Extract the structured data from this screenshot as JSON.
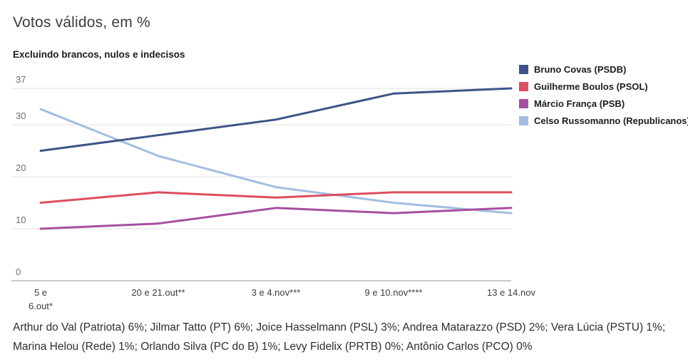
{
  "title": "Votos válidos, em %",
  "subtitle": "Excluindo brancos, nulos e indecisos",
  "footer_lines": [
    "Arthur do Val (Patriota) 6%; Jilmar Tatto (PT) 6%; Joice Hasselmann (PSL) 3%; Andrea Matarazzo (PSD) 2%; Vera Lúcia (PSTU) 1%;",
    "Marina Helou (Rede) 1%; Orlando Silva (PC do B) 1%; Levy Fidelix (PRTB) 0%; Antônio Carlos (PCO) 0%"
  ],
  "chart_data": {
    "type": "line",
    "categories": [
      "5 e\n6.out*",
      "20 e 21.out**",
      "3 e 4.nov***",
      "9 e 10.nov****",
      "13 e 14.nov"
    ],
    "series": [
      {
        "name": "Bruno Covas (PSDB)",
        "color": "#3e5488",
        "values": [
          25,
          28,
          31,
          36,
          37
        ]
      },
      {
        "name": "Guilherme Boulos (PSOL)",
        "color": "#dd4e5e",
        "values": [
          15,
          17,
          16,
          17,
          17
        ]
      },
      {
        "name": "Márcio França (PSB)",
        "color": "#a64fa0",
        "values": [
          10,
          11,
          14,
          13,
          14
        ]
      },
      {
        "name": "Celso Russomanno (Republicanos)",
        "color": "#a3bde2",
        "values": [
          33,
          24,
          18,
          15,
          13
        ]
      }
    ],
    "y_ticks": [
      0,
      10,
      20,
      30,
      37
    ],
    "ylim": [
      0,
      37
    ],
    "xlabel": "",
    "ylabel": "",
    "grid": true,
    "legend_position": "right",
    "colors": {
      "gridline": "#e1e1e1",
      "zeroline": "#a9a9a9"
    }
  }
}
